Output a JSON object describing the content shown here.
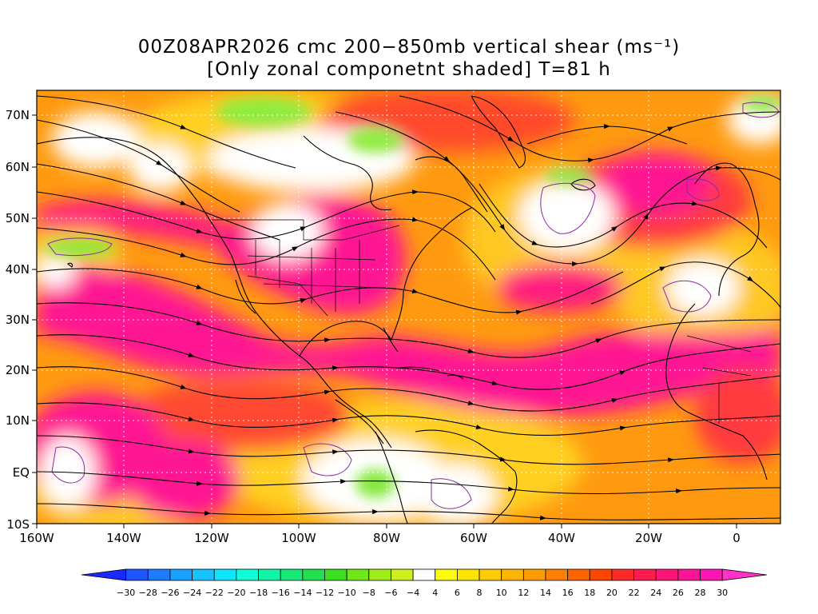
{
  "title": {
    "line1": "00Z08APR2026 cmc 200−850mb vertical shear (ms⁻¹)",
    "line2": "[Only zonal componetnt shaded] T=81 h"
  },
  "map": {
    "lat_labels": [
      "70N",
      "60N",
      "50N",
      "40N",
      "30N",
      "20N",
      "10N",
      "EQ",
      "10S"
    ],
    "lon_labels": [
      "160W",
      "140W",
      "120W",
      "100W",
      "80W",
      "60W",
      "40W",
      "20W",
      "0"
    ],
    "lat_range": [
      -10,
      75
    ],
    "lon_range": [
      -160,
      10
    ],
    "field": "zonal component of 200-850mb vertical shear (shaded), shear vectors as streamlines",
    "colors": {
      "strong_positive": "#ff1493",
      "positive_high": "#ff3a3a",
      "positive_mid": "#ff7a10",
      "positive_low": "#ffc020",
      "near_zero": "#ffffff",
      "negative_low": "#86e83c"
    }
  },
  "colorbar": {
    "ticks": [
      "−30",
      "−28",
      "−26",
      "−24",
      "−22",
      "−20",
      "−18",
      "−16",
      "−14",
      "−12",
      "−10",
      "−8",
      "−6",
      "−4",
      "4",
      "6",
      "8",
      "10",
      "12",
      "14",
      "16",
      "18",
      "20",
      "22",
      "24",
      "26",
      "28",
      "30"
    ],
    "colors": [
      "#1a2aff",
      "#1e55ff",
      "#1e7bff",
      "#1aa0ff",
      "#14c4ff",
      "#10e4ff",
      "#10ffd8",
      "#10f4a8",
      "#18e878",
      "#20e050",
      "#3ce020",
      "#70e818",
      "#a0ec18",
      "#ccf020",
      "#ffffff",
      "#ffff00",
      "#ffe400",
      "#ffcc00",
      "#ffb400",
      "#ff9c00",
      "#ff8000",
      "#ff6400",
      "#ff4600",
      "#ff2a2a",
      "#ff1a50",
      "#ff1478",
      "#ff1496",
      "#ff14b4",
      "#ff32c8"
    ]
  }
}
